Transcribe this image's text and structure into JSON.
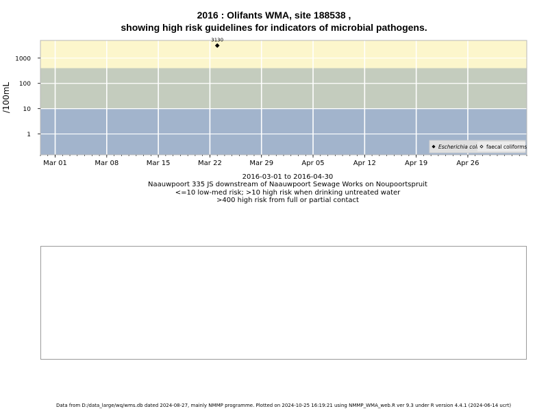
{
  "chart_data": {
    "type": "scatter",
    "title": "2016 : Olifants WMA, site 188538 ,",
    "subtitle": "showing high risk guidelines for indicators of microbial pathogens.",
    "xlabel": "2016-03-01 to 2016-04-30",
    "ylabel": "/100mL",
    "y_scale": "log",
    "xlim": [
      "2016-02-28",
      "2016-05-04"
    ],
    "ylim": [
      0.15,
      5000
    ],
    "x_ticks": [
      {
        "date": "2016-03-01",
        "label": "Mar 01"
      },
      {
        "date": "2016-03-08",
        "label": "Mar 08"
      },
      {
        "date": "2016-03-15",
        "label": "Mar 15"
      },
      {
        "date": "2016-03-22",
        "label": "Mar 22"
      },
      {
        "date": "2016-03-29",
        "label": "Mar 29"
      },
      {
        "date": "2016-04-05",
        "label": "Apr 05"
      },
      {
        "date": "2016-04-12",
        "label": "Apr 12"
      },
      {
        "date": "2016-04-19",
        "label": "Apr 19"
      },
      {
        "date": "2016-04-26",
        "label": "Apr 26"
      }
    ],
    "y_ticks": [
      {
        "value": 1,
        "label": "1"
      },
      {
        "value": 10,
        "label": "10"
      },
      {
        "value": 100,
        "label": "100"
      },
      {
        "value": 1000,
        "label": "1000"
      }
    ],
    "risk_bands": [
      {
        "from": 0.15,
        "to": 10,
        "color": "#a2b4cc"
      },
      {
        "from": 10,
        "to": 400,
        "color": "#c4ccbe"
      },
      {
        "from": 400,
        "to": 5000,
        "color": "#fcf6cc"
      }
    ],
    "grid": true,
    "legend_position": "bottom-right",
    "series": [
      {
        "name": "Escherichia coli",
        "marker": "filled-diamond",
        "points": [
          {
            "x": "2016-03-23",
            "y": 3130,
            "label": "3130"
          }
        ]
      },
      {
        "name": "faecal coliforms",
        "marker": "open-diamond",
        "points": []
      }
    ]
  },
  "captions": {
    "date_range": "2016-03-01 to 2016-04-30",
    "site_description": "Naauwpoort 335 JS downstream of Naauwpoort Sewage Works on Noupoortspruit",
    "risk_line_1": "<=10 low-med risk; >10 high risk when drinking untreated water",
    "risk_line_2": ">400 high risk from full or partial contact"
  },
  "footer": "Data from D:/data_large/wq/wms.db dated 2024-08-27, mainly NMMP programme. Plotted on 2024-10-25 16:19:21 using NMMP_WMA_web.R ver 9.3 under R version 4.4.1 (2024-06-14 ucrt)"
}
